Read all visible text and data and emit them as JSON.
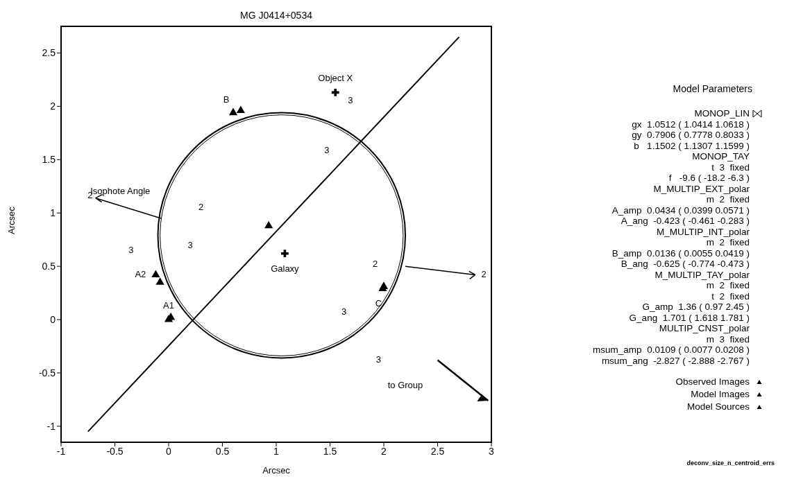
{
  "chart_data": {
    "type": "scatter",
    "title": "MG J0414+0534",
    "xlabel": "Arcsec",
    "ylabel": "Arcsec",
    "xlim": [
      -1,
      3
    ],
    "ylim": [
      -1.15,
      2.75
    ],
    "xticks": [
      -1,
      -0.5,
      0,
      0.5,
      1,
      1.5,
      2,
      2.5,
      3
    ],
    "yticks": [
      -1,
      -0.5,
      0,
      0.5,
      1,
      1.5,
      2,
      2.5
    ],
    "grid": false,
    "legend": "right",
    "legend_title": "Model Parameters",
    "series": [
      {
        "name": "Observed Images",
        "color": "#000000",
        "marker": "triangle",
        "x": [
          0.0,
          -0.12,
          0.6,
          1.99
        ],
        "values": [
          0.0,
          0.42,
          1.94,
          0.29
        ]
      },
      {
        "name": "Model Images",
        "color": "#000000",
        "marker": "triangle",
        "x": [
          0.02,
          -0.08,
          0.67,
          2.0
        ],
        "values": [
          0.02,
          0.35,
          1.96,
          0.31
        ]
      },
      {
        "name": "Model Sources",
        "color": "#000000",
        "marker": "triangle",
        "x": [
          0.93
        ],
        "values": [
          0.88
        ]
      },
      {
        "name": "Galaxy",
        "color": "#000000",
        "marker": "cross",
        "x": [
          1.08
        ],
        "values": [
          0.62
        ]
      },
      {
        "name": "Object X",
        "color": "#000000",
        "marker": "cross",
        "x": [
          1.55
        ],
        "values": [
          2.13
        ]
      },
      {
        "type": "line",
        "color": "#000000",
        "x": [
          -0.75,
          2.7
        ],
        "values": [
          -1.05,
          2.65
        ]
      }
    ],
    "annotations": [
      {
        "text": "A1",
        "x": 0.0,
        "y": 0.0
      },
      {
        "text": "A2",
        "x": -0.12,
        "y": 0.42
      },
      {
        "text": "B",
        "x": 0.6,
        "y": 1.94
      },
      {
        "text": "C",
        "x": 1.99,
        "y": 0.29
      },
      "Isophote Angle",
      "2",
      "2",
      "3",
      "3",
      "3",
      "3",
      "2",
      "2",
      "3",
      "3",
      "to Group",
      "MONOP_LIN",
      "gx  1.0512 ( 1.0414 1.0618 )",
      "gy  0.7906 ( 0.7778 0.8033 )",
      "b   1.1502 ( 1.1307 1.1599 )",
      "MONOP_TAY",
      "t  3  fixed",
      "f   -9.6 ( -18.2 -6.3 )",
      "M_MULTIP_EXT_polar",
      "m  2  fixed",
      "A_amp  0.0434 ( 0.0399 0.0571 )",
      "A_ang  -0.423 ( -0.461 -0.283 )",
      "M_MULTIP_INT_polar",
      "m  2  fixed",
      "B_amp  0.0136 ( 0.0055 0.0419 )",
      "B_ang  -0.625 ( -0.774 -0.473 )",
      "M_MULTIP_TAY_polar",
      "m  2  fixed",
      "t  2  fixed",
      "G_amp  1.36 ( 0.97 2.45 )",
      "G_ang  1.701 ( 1.618 1.781 )",
      "MULTIP_CNST_polar",
      "m  3  fixed",
      "msum_amp  0.0109 ( 0.0077 0.0208 )",
      "msum_ang  -2.827 ( -2.888 -2.767 )",
      "deconv_size_n_centroid_errs"
    ]
  }
}
